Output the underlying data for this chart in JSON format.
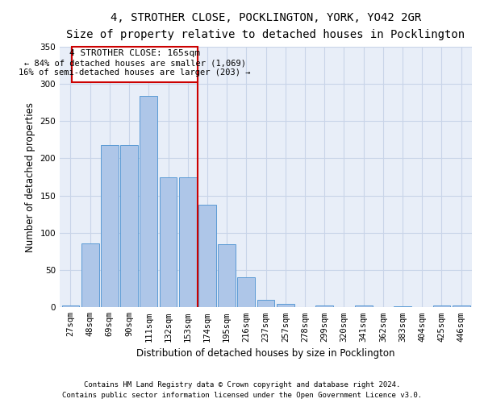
{
  "title": "4, STROTHER CLOSE, POCKLINGTON, YORK, YO42 2GR",
  "subtitle": "Size of property relative to detached houses in Pocklington",
  "xlabel": "Distribution of detached houses by size in Pocklington",
  "ylabel": "Number of detached properties",
  "footnote1": "Contains HM Land Registry data © Crown copyright and database right 2024.",
  "footnote2": "Contains public sector information licensed under the Open Government Licence v3.0.",
  "bar_labels": [
    "27sqm",
    "48sqm",
    "69sqm",
    "90sqm",
    "111sqm",
    "132sqm",
    "153sqm",
    "174sqm",
    "195sqm",
    "216sqm",
    "237sqm",
    "257sqm",
    "278sqm",
    "299sqm",
    "320sqm",
    "341sqm",
    "362sqm",
    "383sqm",
    "404sqm",
    "425sqm",
    "446sqm"
  ],
  "bar_values": [
    3,
    86,
    218,
    218,
    284,
    175,
    175,
    138,
    85,
    40,
    10,
    5,
    0,
    2,
    0,
    3,
    0,
    1,
    0,
    2,
    2
  ],
  "bar_color": "#aec6e8",
  "bar_edge_color": "#5b9bd5",
  "property_label": "4 STROTHER CLOSE: 165sqm",
  "smaller_pct": 84,
  "smaller_count": 1069,
  "larger_pct": 16,
  "larger_count": 203,
  "vline_color": "#cc0000",
  "annotation_box_color": "#cc0000",
  "ylim_max": 350,
  "yticks": [
    0,
    50,
    100,
    150,
    200,
    250,
    300,
    350
  ],
  "grid_color": "#c8d4e8",
  "bg_color": "#e8eef8",
  "title_fontsize": 10,
  "subtitle_fontsize": 9,
  "axis_label_fontsize": 8.5,
  "tick_fontsize": 7.5,
  "annotation_fontsize": 8
}
